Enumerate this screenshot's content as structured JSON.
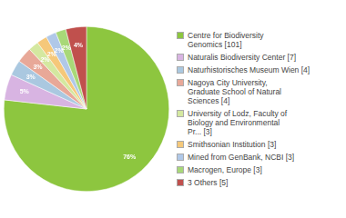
{
  "chart_data": {
    "type": "pie",
    "categories": [
      "Centre for Biodiversity\nGenomics [101]",
      "Naturalis Biodiversity Center [7]",
      "Naturhistorisches Museum Wien [4]",
      "Nagoya City University,\nGraduate School of Natural\nSciences [4]",
      "University of Lodz, Faculty of\nBiology and Environmental\nPr... [3]",
      "Smithsonian Institution [3]",
      "Mined from GenBank, NCBI [3]",
      "Macrogen, Europe [3]",
      "3 Others [5]"
    ],
    "values": [
      76,
      5,
      3,
      3,
      2,
      2,
      2,
      2,
      4
    ],
    "value_labels": [
      "76%",
      "5%",
      "3%",
      "3%",
      "2%",
      "2%",
      "2%",
      "2%",
      "4%"
    ],
    "colors": [
      "#8dc63f",
      "#d8b4e2",
      "#aac8e0",
      "#e8a898",
      "#d4e8a0",
      "#f5c87a",
      "#b0c8e8",
      "#a8d878",
      "#c0504d"
    ],
    "data_labels": true,
    "legend": "right"
  }
}
